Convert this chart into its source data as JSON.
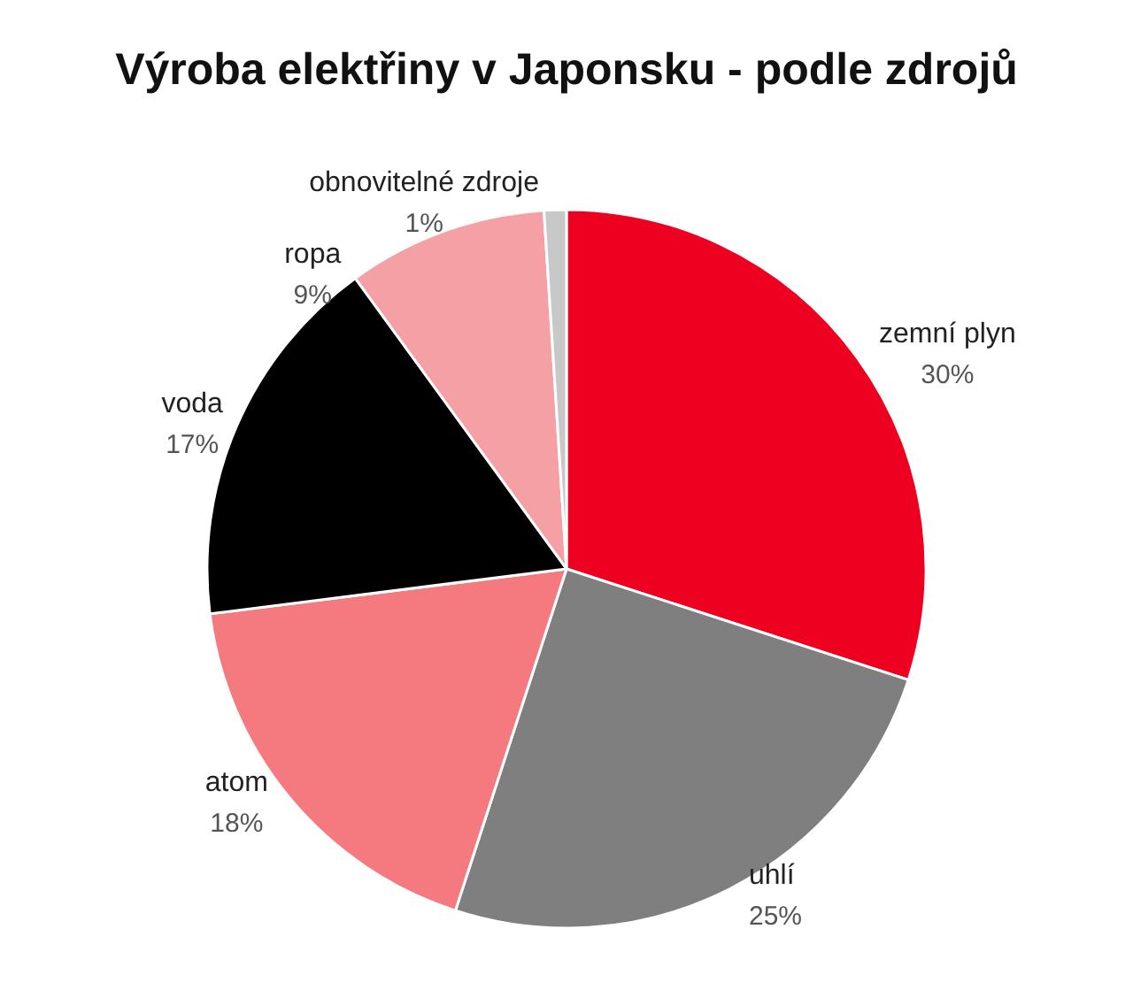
{
  "chart_data": {
    "type": "pie",
    "title": "Výroba elektřiny v Japonsku - podle zdrojů",
    "categories": [
      "zemní plyn",
      "uhlí",
      "atom",
      "voda",
      "ropa",
      "obnovitelné zdroje"
    ],
    "values": [
      30,
      25,
      18,
      17,
      9,
      1
    ],
    "value_labels": [
      "30%",
      "25%",
      "18%",
      "17%",
      "9%",
      "1%"
    ],
    "colors": [
      "#ee0020",
      "#7f7f7f",
      "#f47a80",
      "#000000",
      "#f4a0a4",
      "#c8c8c8"
    ],
    "legend": false
  }
}
